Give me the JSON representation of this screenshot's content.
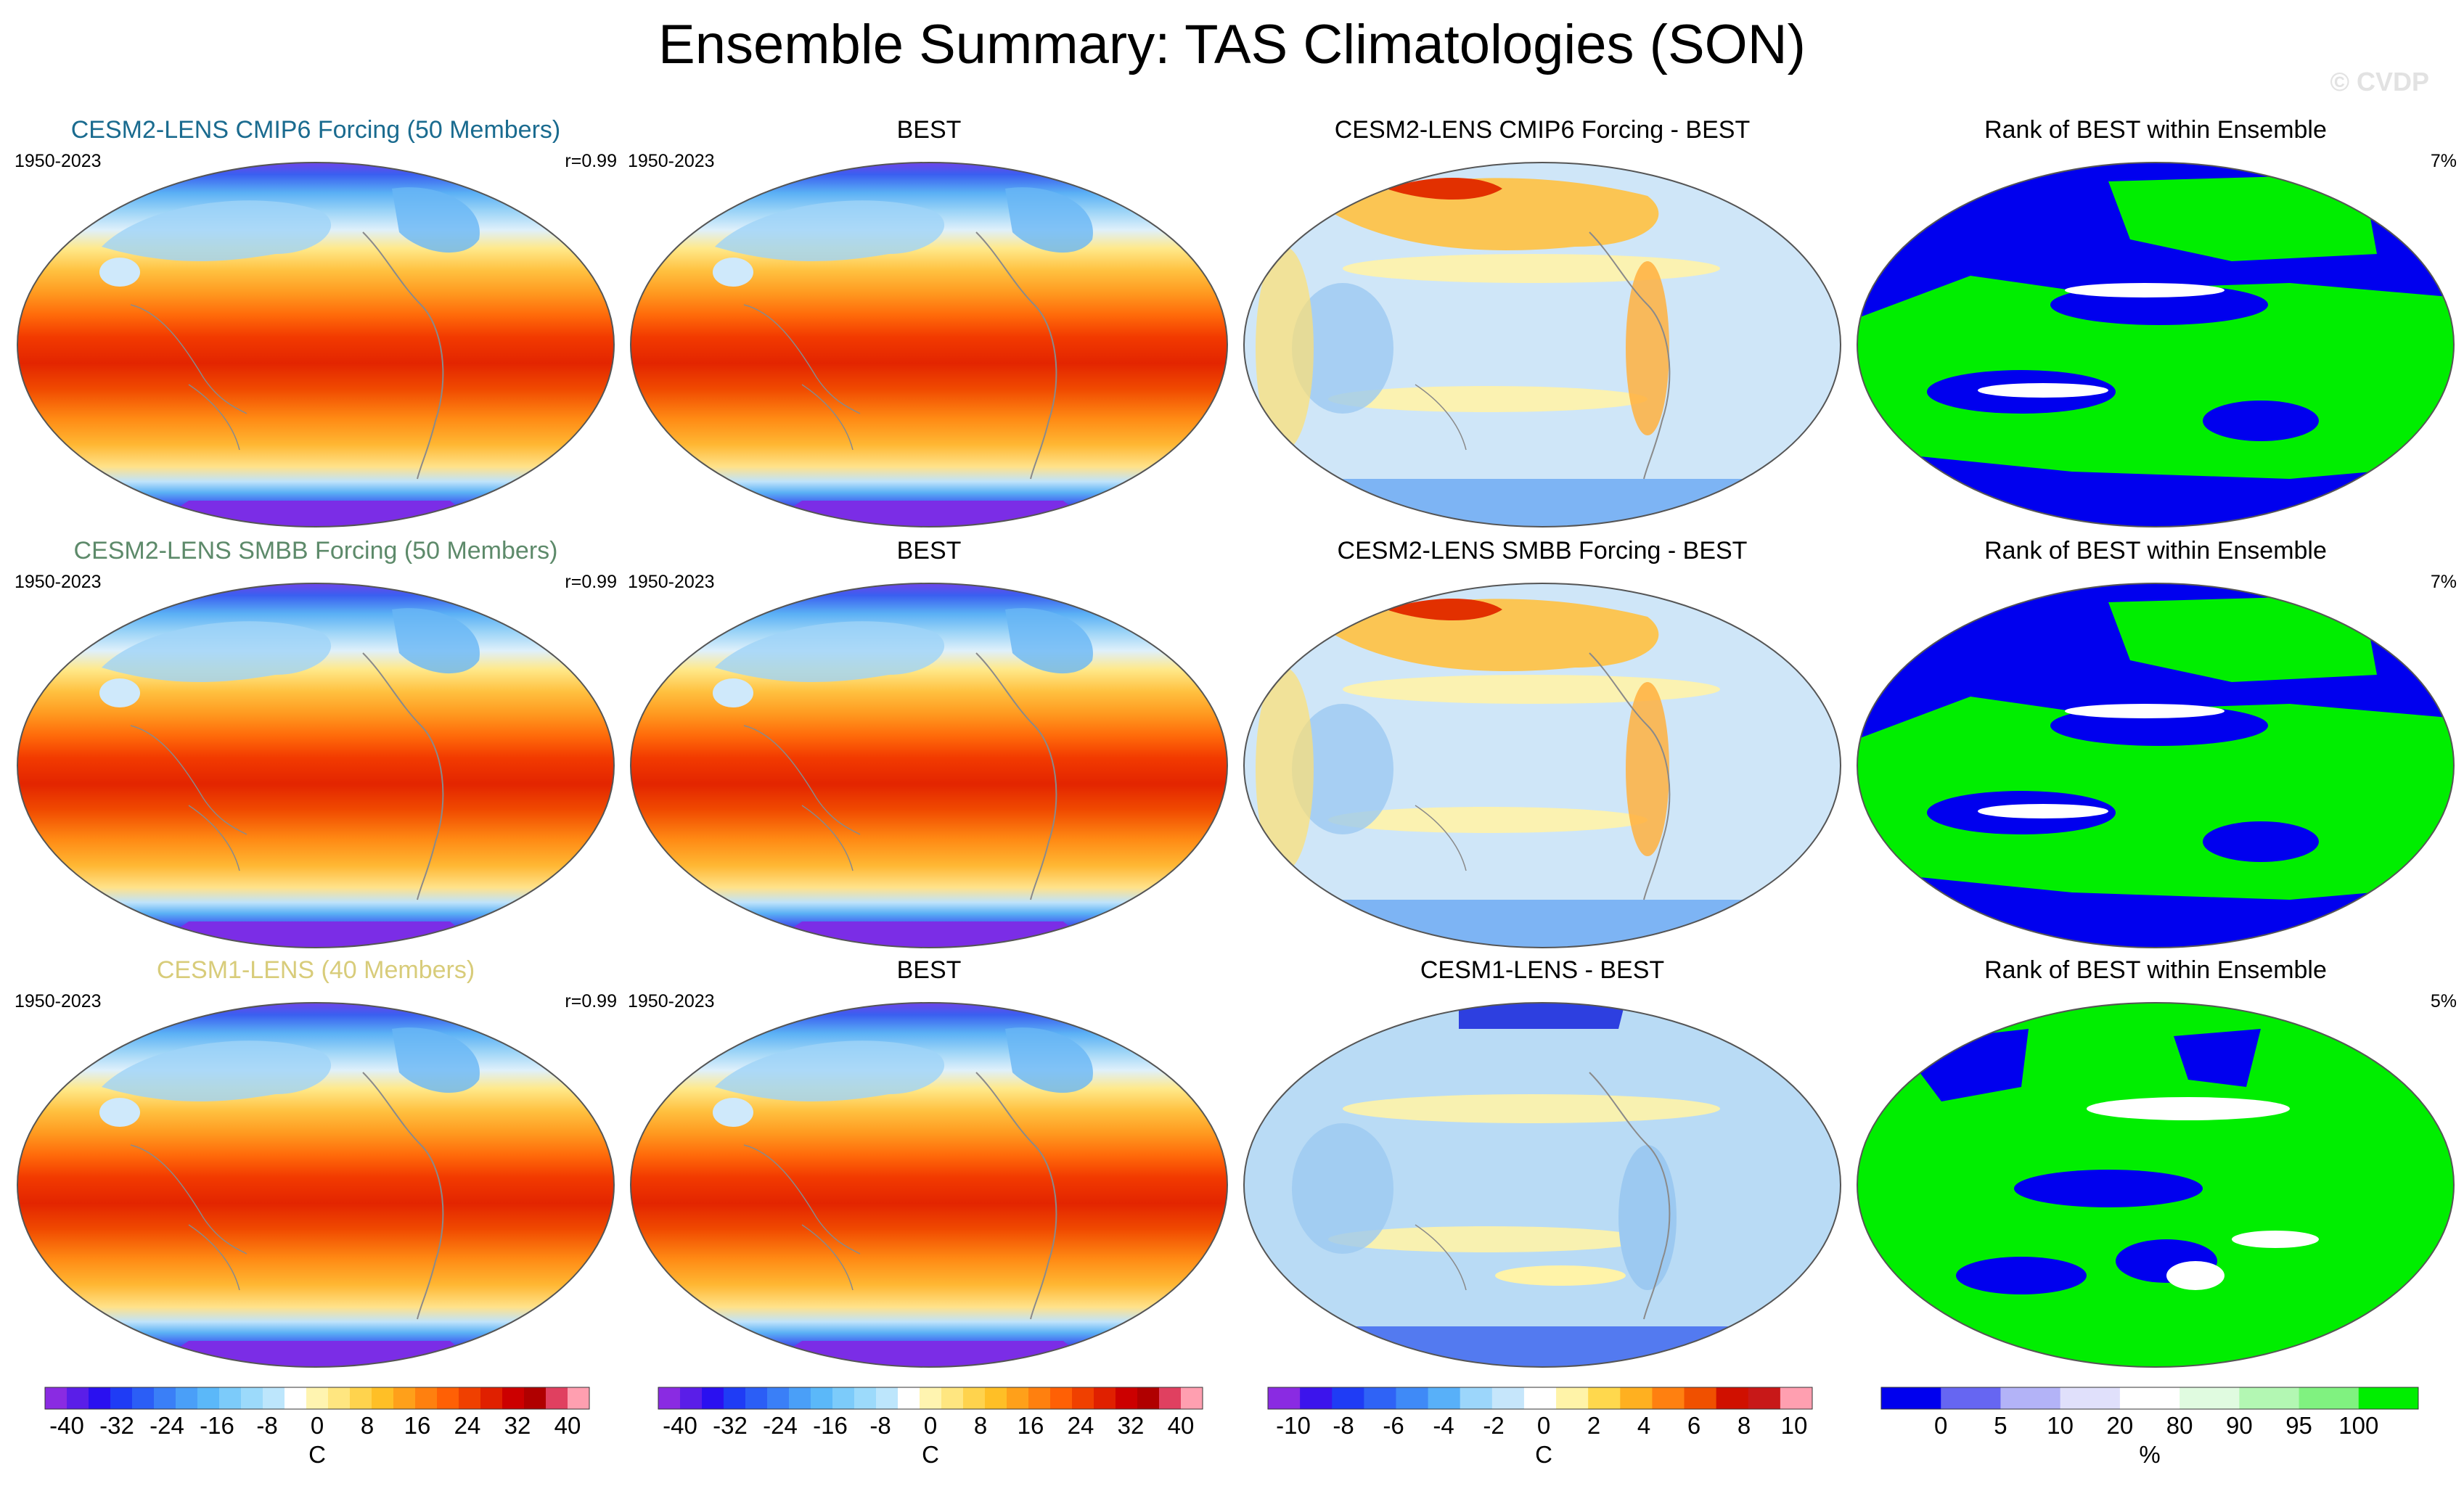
{
  "title": "Ensemble Summary: TAS Climatologies (SON)",
  "watermark": "© CVDP",
  "rows": [
    {
      "model_title": "CESM2-LENS CMIP6 Forcing (50 Members)",
      "model_title_color": "#1a6b8f",
      "model_period": "1950-2023",
      "model_r": "r=0.99",
      "obs_title": "BEST",
      "obs_period": "1950-2023",
      "diff_title": "CESM2-LENS CMIP6 Forcing - BEST",
      "rank_title": "Rank of BEST within Ensemble",
      "rank_pct": "7%"
    },
    {
      "model_title": "CESM2-LENS SMBB Forcing (50 Members)",
      "model_title_color": "#5d8a6a",
      "model_period": "1950-2023",
      "model_r": "r=0.99",
      "obs_title": "BEST",
      "obs_period": "1950-2023",
      "diff_title": "CESM2-LENS SMBB Forcing - BEST",
      "rank_title": "Rank of BEST within Ensemble",
      "rank_pct": "7%"
    },
    {
      "model_title": "CESM1-LENS (40 Members)",
      "model_title_color": "#d8cc7a",
      "model_period": "1950-2023",
      "model_r": "r=0.99",
      "obs_title": "BEST",
      "obs_period": "1950-2023",
      "diff_title": "CESM1-LENS - BEST",
      "rank_title": "Rank of BEST within Ensemble",
      "rank_pct": "5%"
    }
  ],
  "colorbars": {
    "clim": {
      "labels": [
        "-40",
        "-32",
        "-24",
        "-16",
        "-8",
        "0",
        "8",
        "16",
        "24",
        "32",
        "40"
      ],
      "unit": "C",
      "colors": [
        "#8a2be2",
        "#5a1ee8",
        "#2a10f0",
        "#1f3cf5",
        "#2b5ef6",
        "#3a7ff7",
        "#4a9ff8",
        "#5bb8f9",
        "#7ccbfa",
        "#9cdafb",
        "#bde6fc",
        "#ffffff",
        "#fff4b0",
        "#ffe680",
        "#ffd34d",
        "#ffbf26",
        "#ffa01a",
        "#ff800f",
        "#ff6005",
        "#f04000",
        "#e02000",
        "#cc0000",
        "#b00000",
        "#e04060",
        "#ff9fb0"
      ]
    },
    "diff": {
      "labels": [
        "-10",
        "-8",
        "-6",
        "-4",
        "-2",
        "0",
        "2",
        "4",
        "6",
        "8",
        "10"
      ],
      "unit": "C",
      "colors": [
        "#8a2be2",
        "#3c14ec",
        "#1f3cf5",
        "#2f63f6",
        "#3f8af7",
        "#58b0f9",
        "#9cd6fb",
        "#c6e6fb",
        "#ffffff",
        "#fff3a8",
        "#ffd84d",
        "#ffb020",
        "#ff8010",
        "#f05000",
        "#d01000",
        "#c81818",
        "#ff9fb0"
      ]
    },
    "rank": {
      "labels": [
        "0",
        "5",
        "10",
        "20",
        "80",
        "90",
        "95",
        "100"
      ],
      "unit": "%",
      "colors": [
        "#0000ee",
        "#6666f2",
        "#b3b3f7",
        "#e0e0fb",
        "#ffffff",
        "#e0fbe0",
        "#b3f7b3",
        "#80f280",
        "#00ee00"
      ]
    }
  }
}
